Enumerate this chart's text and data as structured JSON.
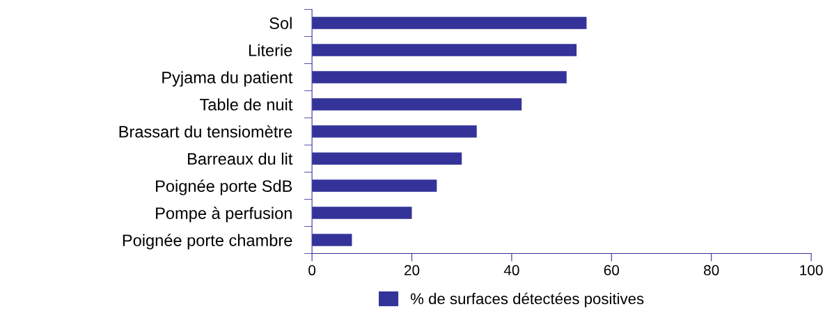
{
  "chart_data": {
    "type": "bar",
    "orientation": "horizontal",
    "categories": [
      "Sol",
      "Literie",
      "Pyjama du patient",
      "Table de nuit",
      "Brassart du tensiomètre",
      "Barreaux du lit",
      "Poignée porte SdB",
      "Pompe à perfusion",
      "Poignée porte chambre"
    ],
    "series": [
      {
        "name": "% de surfaces détectées positives",
        "color": "#333399",
        "values": [
          55,
          53,
          51,
          42,
          33,
          30,
          25,
          20,
          8
        ]
      }
    ],
    "xlim": [
      0,
      100
    ],
    "xticks": [
      0,
      20,
      40,
      60,
      80,
      100
    ],
    "grid": false,
    "legend": "bottom"
  }
}
